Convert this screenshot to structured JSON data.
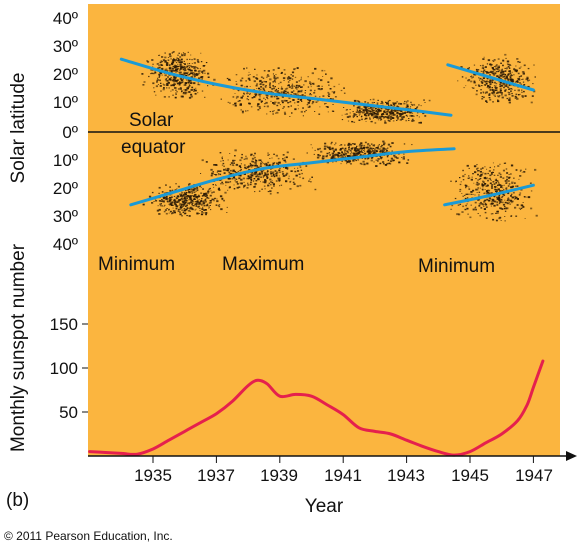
{
  "figure_label": "(b)",
  "copyright": "© 2011 Pearson Education, Inc.",
  "chart_data": [
    {
      "type": "scatter",
      "ylabel": "Solar latitude",
      "annotation": "Solar equator",
      "y_tick_labels": [
        "40º",
        "30º",
        "20º",
        "10º",
        "0º",
        "10º",
        "20º",
        "30º",
        "40º"
      ],
      "ylim": [
        -40,
        40
      ],
      "xlim": [
        1933,
        1948
      ],
      "phase_labels": [
        {
          "text": "Minimum",
          "year": 1934.3
        },
        {
          "text": "Maximum",
          "year": 1938.9
        },
        {
          "text": "Minimum",
          "year": 1945.0
        }
      ],
      "band_colors": {
        "background": "#fbb53f",
        "spots": "#2b1a05",
        "trend": "#1a9ad6"
      },
      "trend_lines": [
        {
          "hemisphere": "north",
          "x": [
            1934.0,
            1935.5,
            1937.0,
            1938.5,
            1940.0,
            1941.5,
            1943.0,
            1944.4
          ],
          "y": [
            26,
            21,
            17,
            14,
            12,
            10,
            8,
            6
          ]
        },
        {
          "hemisphere": "north",
          "x": [
            1944.3,
            1945.5,
            1947.0
          ],
          "y": [
            24,
            20,
            15
          ]
        },
        {
          "hemisphere": "south",
          "x": [
            1934.3,
            1935.5,
            1937.0,
            1938.5,
            1940.0,
            1941.5,
            1943.0,
            1944.5
          ],
          "y": [
            -26,
            -22,
            -17,
            -13,
            -11,
            -9,
            -7,
            -6
          ]
        },
        {
          "hemisphere": "south",
          "x": [
            1944.2,
            1945.5,
            1947.0
          ],
          "y": [
            -26,
            -23,
            -19
          ]
        }
      ],
      "spot_clusters": [
        {
          "x": [
            1934.5,
            1937.0
          ],
          "y": [
            12,
            30
          ]
        },
        {
          "x": [
            1936.5,
            1941.5
          ],
          "y": [
            5,
            24
          ]
        },
        {
          "x": [
            1940.5,
            1944.0
          ],
          "y": [
            3,
            12
          ]
        },
        {
          "x": [
            1944.5,
            1947.3
          ],
          "y": [
            10,
            28
          ]
        },
        {
          "x": [
            1934.6,
            1937.5
          ],
          "y": [
            -30,
            -18
          ]
        },
        {
          "x": [
            1936.0,
            1940.5
          ],
          "y": [
            -22,
            -6
          ]
        },
        {
          "x": [
            1939.5,
            1943.5
          ],
          "y": [
            -12,
            -3
          ]
        },
        {
          "x": [
            1944.0,
            1947.3
          ],
          "y": [
            -32,
            -10
          ]
        }
      ]
    },
    {
      "type": "line",
      "xlabel": "Year",
      "ylabel": "Monthly sunspot number",
      "x_tick_labels": [
        "1935",
        "1937",
        "1939",
        "1941",
        "1943",
        "1945",
        "1947"
      ],
      "y_tick_labels": [
        "50",
        "100",
        "150"
      ],
      "ylim": [
        0,
        150
      ],
      "xlim": [
        1933,
        1948
      ],
      "series_color": "#e5204d",
      "series": [
        {
          "x": [
            1933.0,
            1933.5,
            1934.0,
            1934.5,
            1935.0,
            1935.5,
            1936.0,
            1936.5,
            1937.0,
            1937.5,
            1938.0,
            1938.3,
            1938.6,
            1939.0,
            1939.5,
            1940.0,
            1940.5,
            1941.0,
            1941.5,
            1942.0,
            1942.5,
            1943.0,
            1943.5,
            1944.0,
            1944.5,
            1945.0,
            1945.5,
            1946.0,
            1946.5,
            1946.8,
            1947.0,
            1947.3
          ],
          "y": [
            5,
            4,
            3,
            2,
            8,
            18,
            28,
            38,
            48,
            62,
            80,
            86,
            82,
            68,
            70,
            68,
            58,
            47,
            32,
            28,
            25,
            18,
            11,
            5,
            1,
            5,
            15,
            25,
            40,
            58,
            78,
            108
          ]
        }
      ]
    }
  ]
}
